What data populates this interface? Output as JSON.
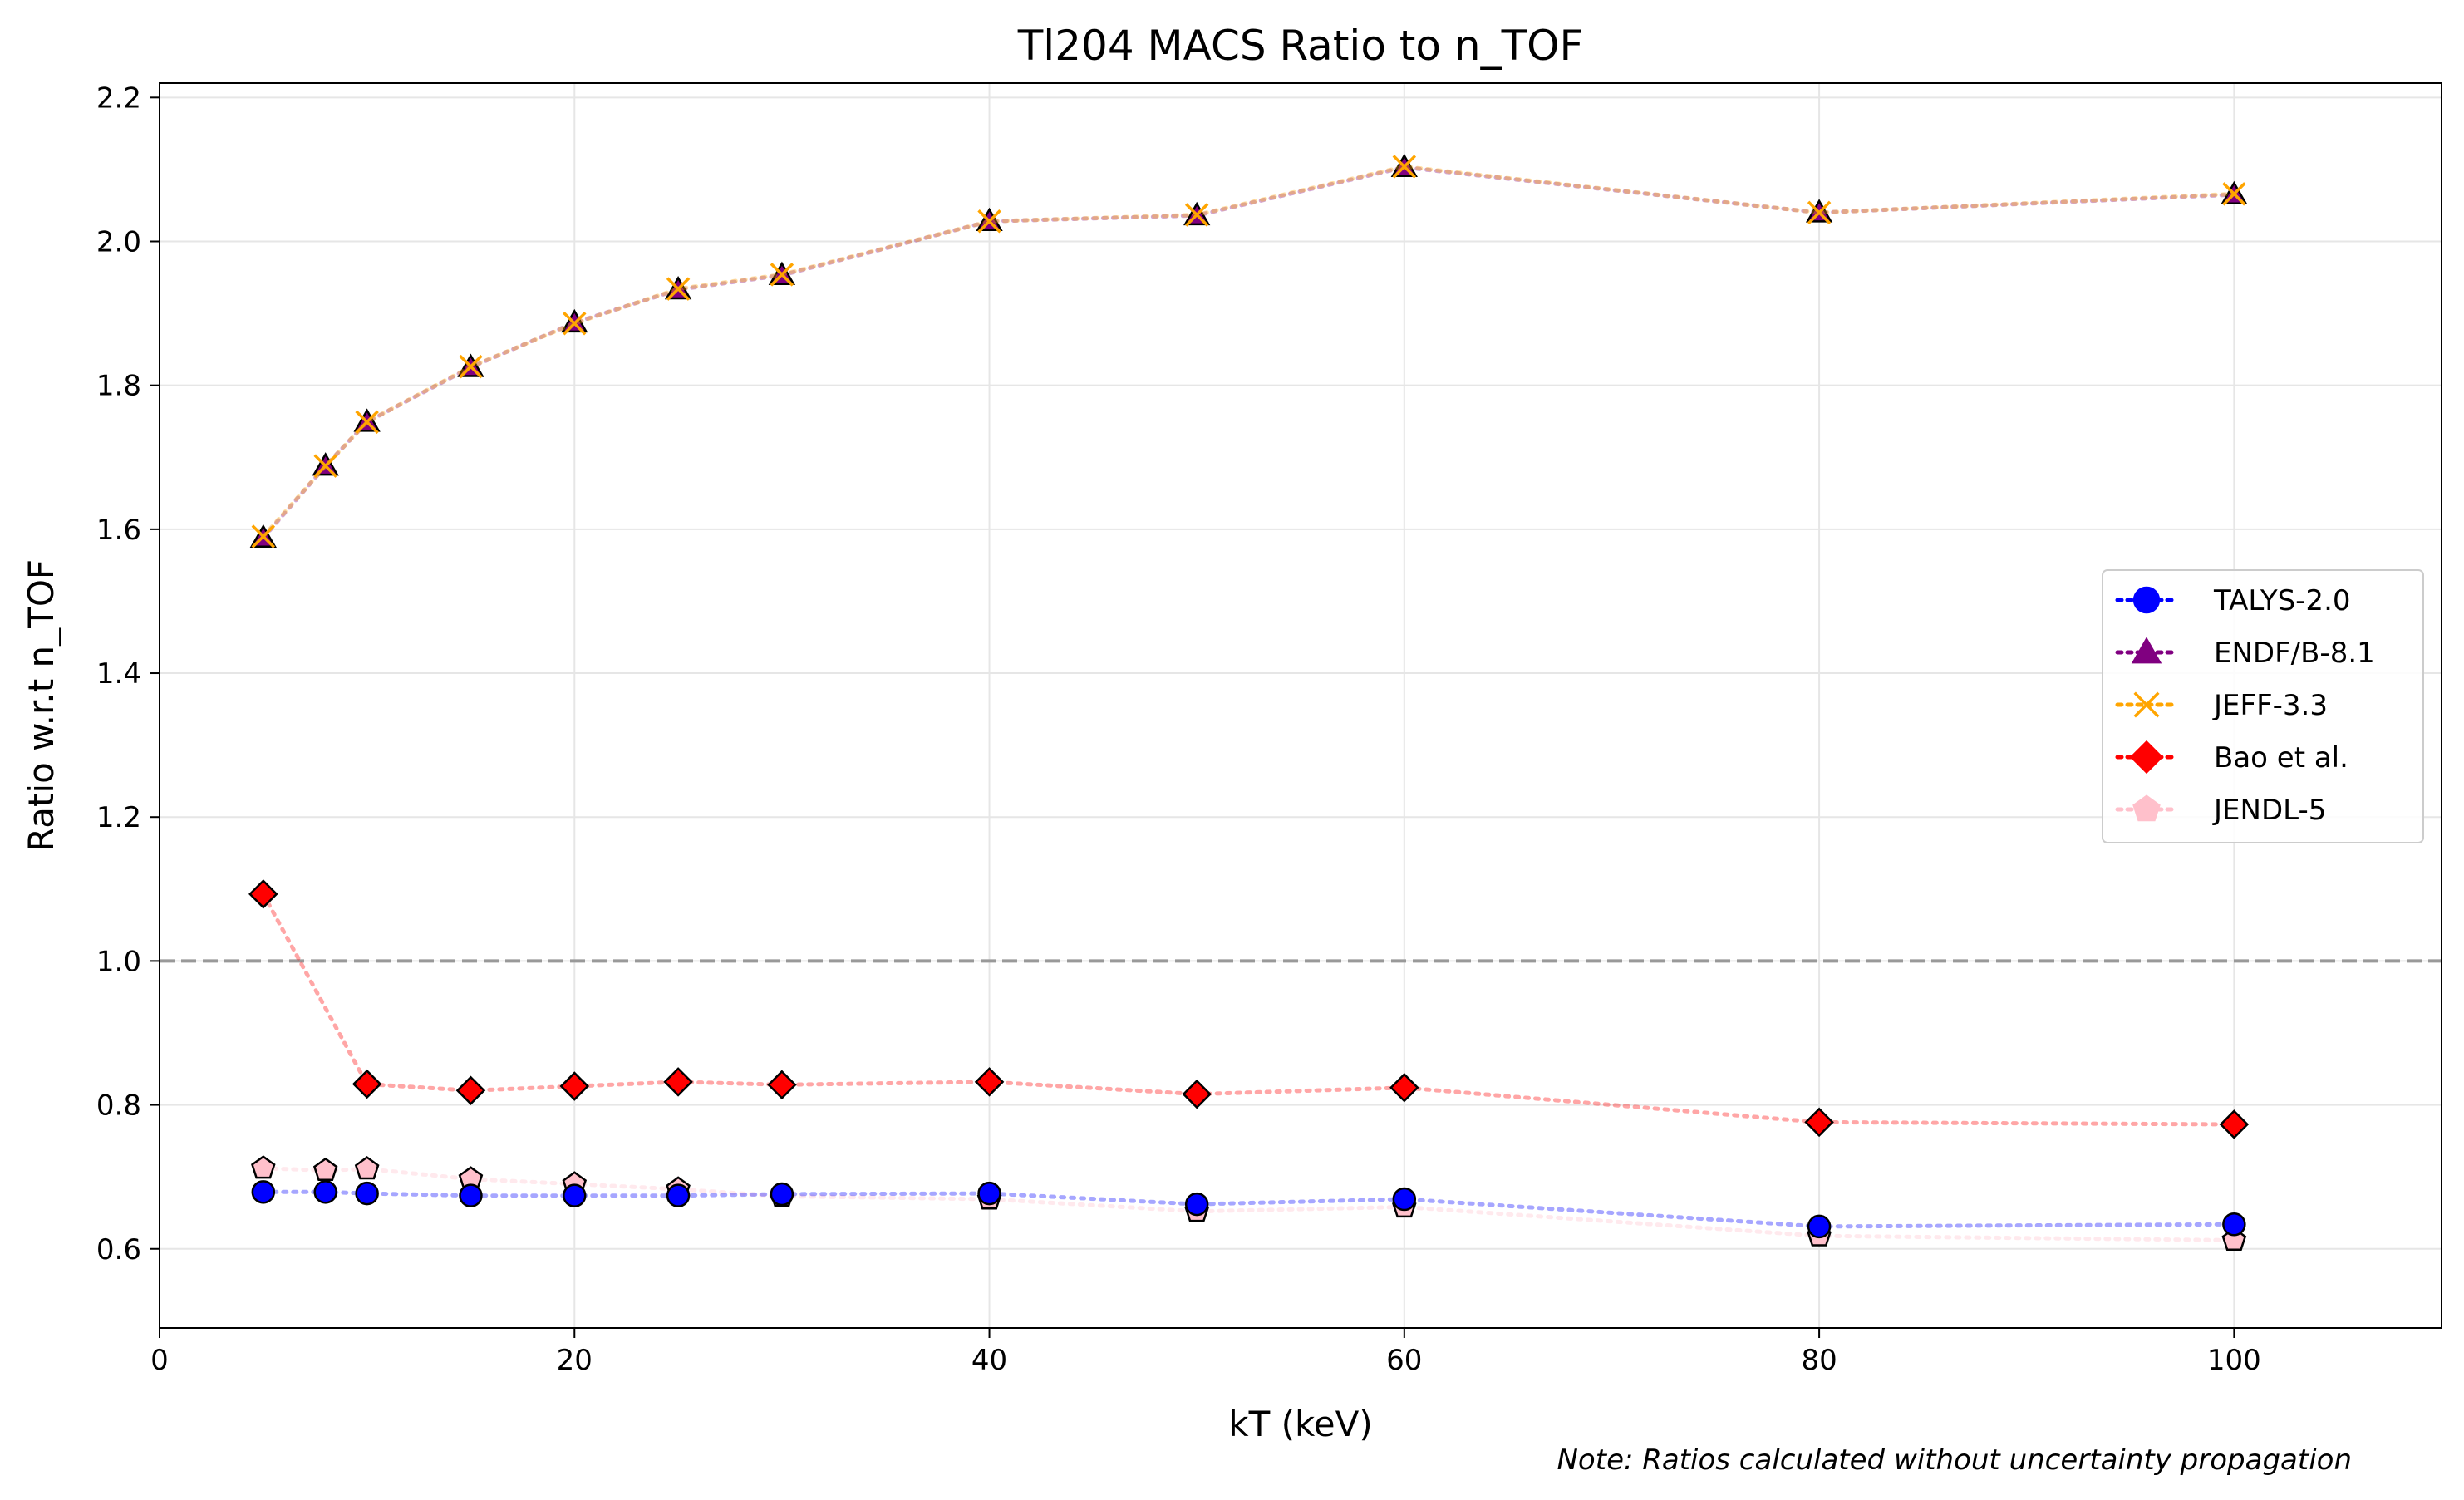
{
  "chart_data": {
    "type": "line",
    "title": "Tl204 MACS Ratio to n_TOF",
    "xlabel": "kT (keV)",
    "ylabel": "Ratio w.r.t n_TOF",
    "xlim": [
      0,
      110
    ],
    "ylim": [
      0.49,
      2.22
    ],
    "xticks": [
      0,
      20,
      40,
      60,
      80,
      100
    ],
    "yticks": [
      0.6,
      0.8,
      1.0,
      1.2,
      1.4,
      1.6,
      1.8,
      2.0,
      2.2
    ],
    "grid": true,
    "legend_position": "center-right",
    "reference_line": {
      "y": 1.0,
      "style": "dashed",
      "color": "#999999"
    },
    "note": "Note: Ratios calculated without uncertainty propagation",
    "series": [
      {
        "name": "TALYS-2.0",
        "marker": "circle",
        "color": "#0000ff",
        "x": [
          5,
          8,
          10,
          15,
          20,
          25,
          30,
          40,
          50,
          60,
          80,
          100
        ],
        "y": [
          0.679,
          0.679,
          0.677,
          0.674,
          0.674,
          0.674,
          0.676,
          0.677,
          0.662,
          0.669,
          0.631,
          0.634
        ]
      },
      {
        "name": "ENDF/B-8.1",
        "marker": "triangle",
        "color": "#800080",
        "x": [
          5,
          8,
          10,
          15,
          20,
          25,
          30,
          40,
          50,
          60,
          80,
          100
        ],
        "y": [
          1.588,
          1.688,
          1.749,
          1.825,
          1.887,
          1.933,
          1.953,
          2.028,
          2.036,
          2.103,
          2.04,
          2.065
        ]
      },
      {
        "name": "JEFF-3.3",
        "marker": "x",
        "color": "#ffa500",
        "x": [
          5,
          8,
          10,
          15,
          20,
          25,
          30,
          40,
          50,
          60,
          80,
          100
        ],
        "y": [
          1.59,
          1.688,
          1.749,
          1.826,
          1.886,
          1.934,
          1.954,
          2.028,
          2.037,
          2.104,
          2.04,
          2.066
        ]
      },
      {
        "name": "Bao et al.",
        "marker": "diamond",
        "color": "#ff0000",
        "x": [
          5,
          10,
          15,
          20,
          25,
          30,
          40,
          50,
          60,
          80,
          100
        ],
        "y": [
          1.093,
          0.829,
          0.82,
          0.826,
          0.832,
          0.828,
          0.832,
          0.815,
          0.824,
          0.776,
          0.773
        ]
      },
      {
        "name": "JENDL-5",
        "marker": "pentagon",
        "color": "#ffc0cb",
        "x": [
          5,
          8,
          10,
          15,
          20,
          25,
          30,
          40,
          50,
          60,
          80,
          100
        ],
        "y": [
          0.712,
          0.709,
          0.711,
          0.697,
          0.69,
          0.683,
          0.673,
          0.669,
          0.652,
          0.658,
          0.618,
          0.612
        ]
      }
    ]
  }
}
